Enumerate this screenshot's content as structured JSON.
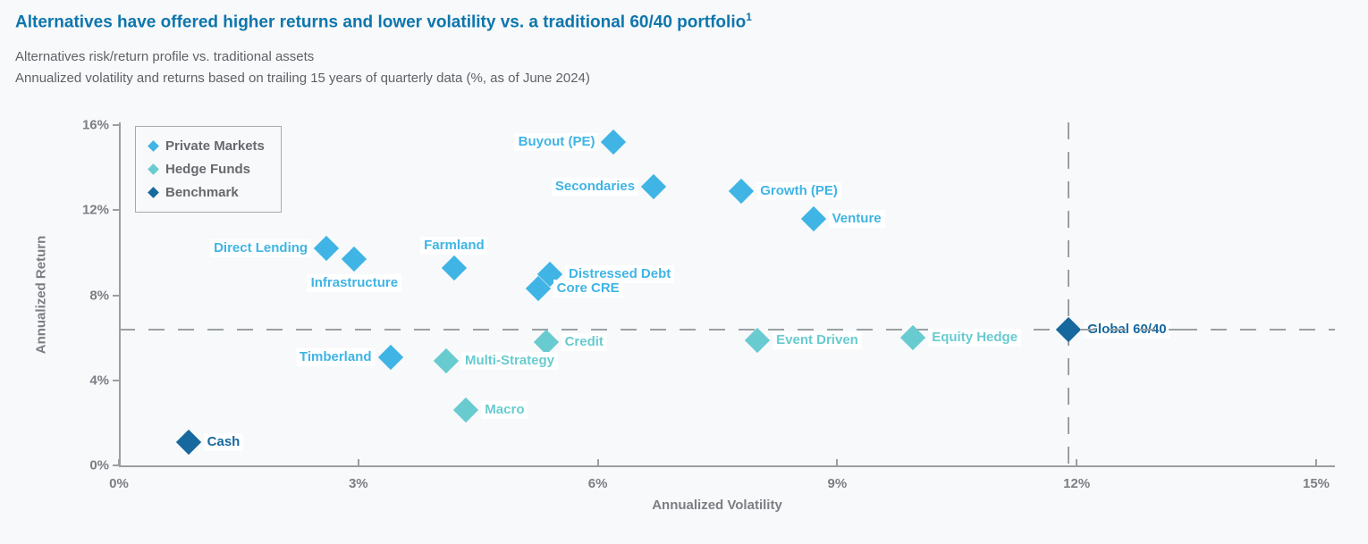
{
  "header": {
    "title": "Alternatives have offered higher returns and lower volatility vs. a traditional 60/40 portfolio",
    "title_superscript": "1",
    "subtitle1": "Alternatives risk/return profile vs. traditional assets",
    "subtitle2": "Annualized volatility and returns based on trailing 15 years of quarterly data (%, as of June 2024)"
  },
  "colors": {
    "title_blue": "#0d76ad",
    "subtitle_gray": "#5e6267",
    "axis_gray": "#7b7e83",
    "axis_line_gray": "#9b9ea2",
    "dashed_line_gray": "#9aa0a4",
    "private_markets": "#3fb4e5",
    "hedge_funds": "#68cbd0",
    "benchmark": "#16689e",
    "background": "#f8f9fb"
  },
  "chart_data": {
    "type": "scatter",
    "title": "Alternatives risk/return profile vs. traditional assets",
    "xlabel": "Annualized Volatility",
    "ylabel": "Annualized Return",
    "xlim": [
      0,
      15
    ],
    "ylim": [
      0,
      16
    ],
    "units": "percent",
    "grid": false,
    "x_ticks": [
      {
        "value": 0,
        "label": "0%"
      },
      {
        "value": 3,
        "label": "3%"
      },
      {
        "value": 6,
        "label": "6%"
      },
      {
        "value": 9,
        "label": "9%"
      },
      {
        "value": 12,
        "label": "12%"
      },
      {
        "value": 15,
        "label": "15%"
      }
    ],
    "y_ticks": [
      {
        "value": 0,
        "label": "0%"
      },
      {
        "value": 4,
        "label": "4%"
      },
      {
        "value": 8,
        "label": "8%"
      },
      {
        "value": 12,
        "label": "12%"
      },
      {
        "value": 16,
        "label": "16%"
      }
    ],
    "legend": {
      "position": "top-left",
      "items": [
        {
          "label": "Private Markets",
          "series": "pm"
        },
        {
          "label": "Hedge Funds",
          "series": "hf"
        },
        {
          "label": "Benchmark",
          "series": "bm"
        }
      ]
    },
    "series_colors": {
      "pm": "#3fb4e5",
      "hf": "#68cbd0",
      "bm": "#16689e"
    },
    "reference_lines": {
      "horizontal_y": 6.4,
      "vertical_x": 11.9
    },
    "points": [
      {
        "label": "Buyout (PE)",
        "series": "pm",
        "x": 6.2,
        "y": 15.2,
        "label_side": "left"
      },
      {
        "label": "Secondaries",
        "series": "pm",
        "x": 6.7,
        "y": 13.1,
        "label_side": "left"
      },
      {
        "label": "Growth (PE)",
        "series": "pm",
        "x": 7.8,
        "y": 12.9,
        "label_side": "right"
      },
      {
        "label": "Venture",
        "series": "pm",
        "x": 8.7,
        "y": 11.6,
        "label_side": "right"
      },
      {
        "label": "Direct Lending",
        "series": "pm",
        "x": 2.6,
        "y": 10.2,
        "label_side": "left"
      },
      {
        "label": "Infrastructure",
        "series": "pm",
        "x": 2.95,
        "y": 9.7,
        "label_side": "below"
      },
      {
        "label": "Farmland",
        "series": "pm",
        "x": 4.2,
        "y": 9.3,
        "label_side": "above"
      },
      {
        "label": "Distressed Debt",
        "series": "pm",
        "x": 5.4,
        "y": 9.0,
        "label_side": "right"
      },
      {
        "label": "Core CRE",
        "series": "pm",
        "x": 5.25,
        "y": 8.3,
        "label_side": "right"
      },
      {
        "label": "Credit",
        "series": "hf",
        "x": 5.35,
        "y": 5.8,
        "label_side": "right"
      },
      {
        "label": "Timberland",
        "series": "pm",
        "x": 3.4,
        "y": 5.1,
        "label_side": "left"
      },
      {
        "label": "Multi-Strategy",
        "series": "hf",
        "x": 4.1,
        "y": 4.9,
        "label_side": "right"
      },
      {
        "label": "Macro",
        "series": "hf",
        "x": 4.35,
        "y": 2.6,
        "label_side": "right"
      },
      {
        "label": "Event Driven",
        "series": "hf",
        "x": 8.0,
        "y": 5.9,
        "label_side": "right"
      },
      {
        "label": "Equity Hedge",
        "series": "hf",
        "x": 9.95,
        "y": 6.0,
        "label_side": "right"
      },
      {
        "label": "Global 60/40",
        "series": "bm",
        "x": 11.9,
        "y": 6.4,
        "label_side": "right",
        "strike_through_label": true
      },
      {
        "label": "Cash",
        "series": "bm",
        "x": 0.87,
        "y": 1.1,
        "label_side": "right"
      }
    ]
  }
}
